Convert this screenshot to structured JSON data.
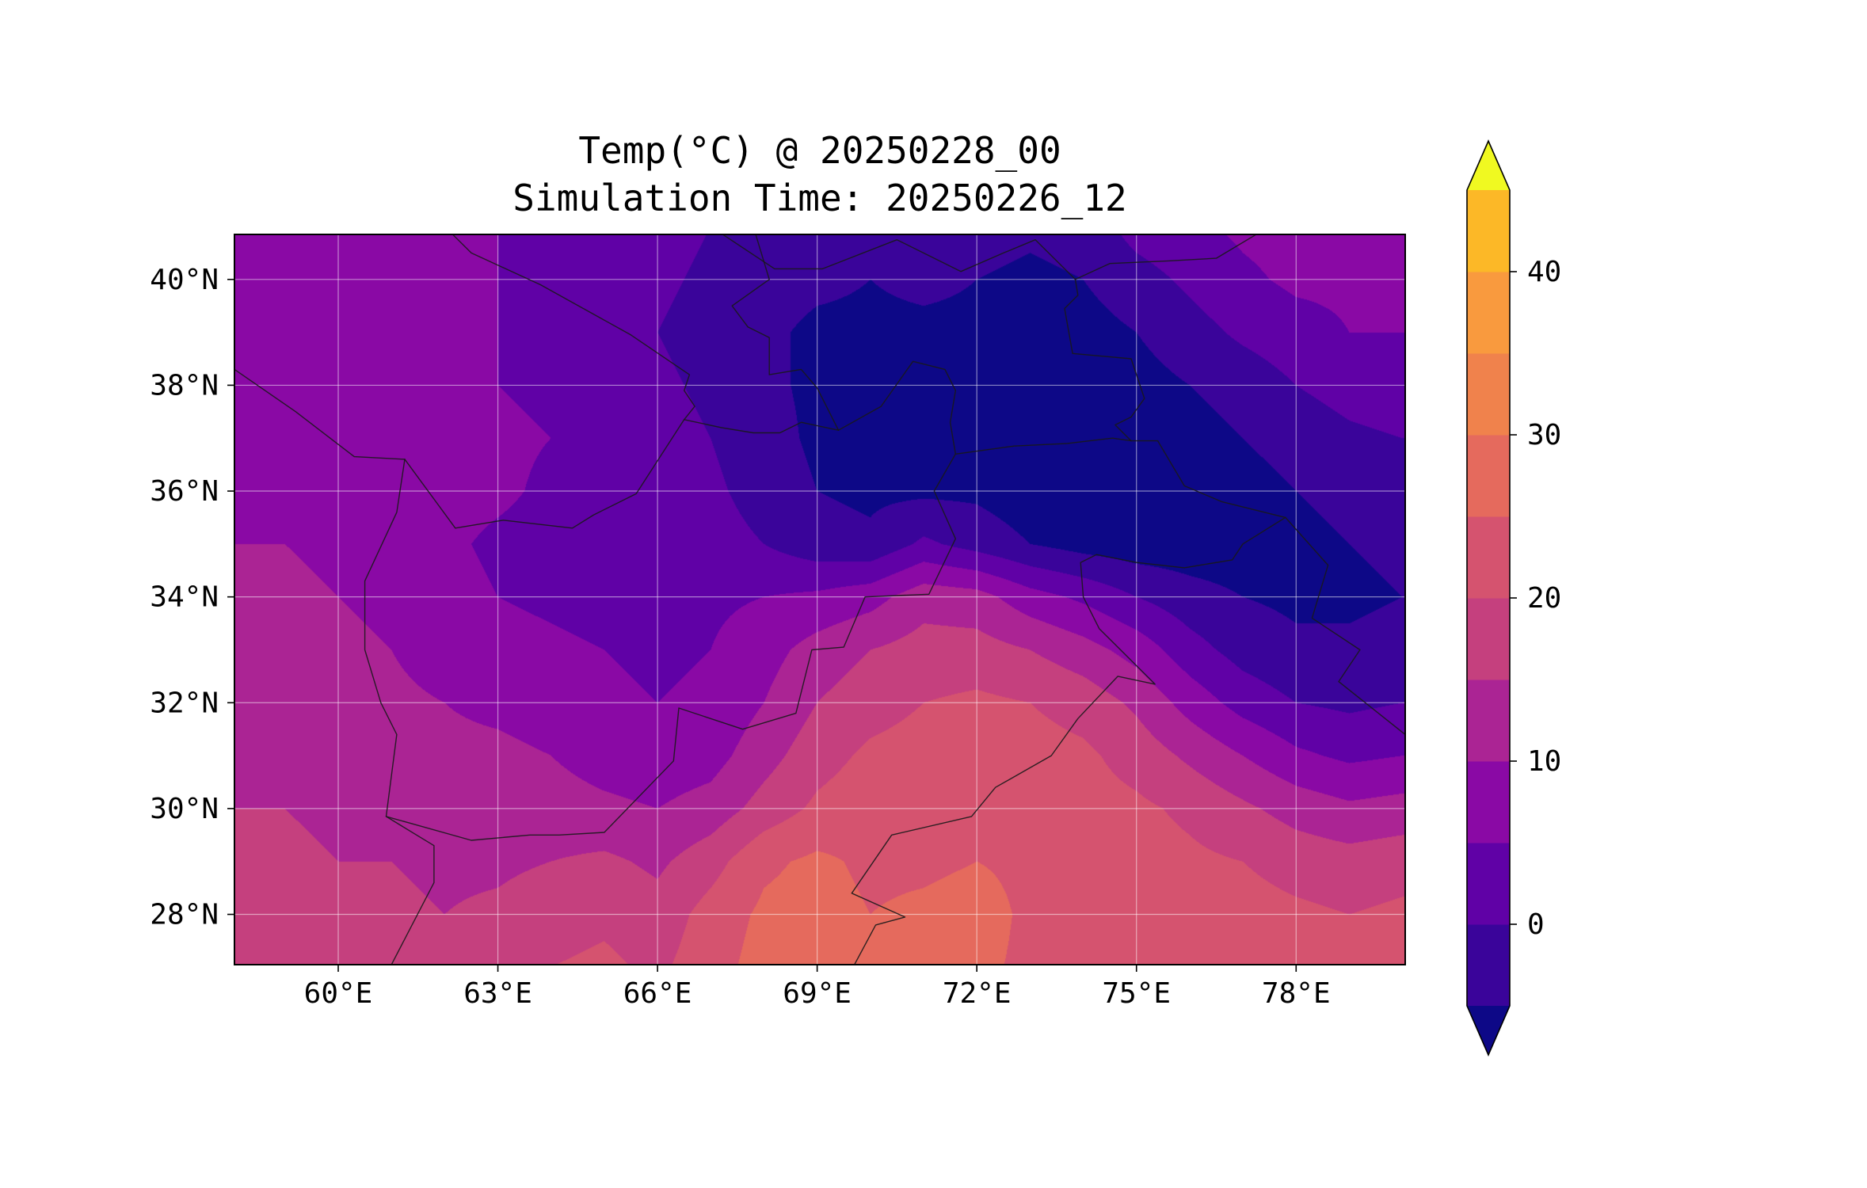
{
  "title": {
    "line1": "Temp(°C) @ 20250228_00",
    "line2": "Simulation Time: 20250226_12"
  },
  "chart_data": {
    "type": "heatmap",
    "title": "Temp(°C) @ 20250228_00",
    "subtitle": "Simulation Time: 20250226_12",
    "variable": "Temp",
    "units": "°C",
    "projection": "lon-lat",
    "lon_range": [
      58.05,
      80.05
    ],
    "lat_range": [
      27.05,
      40.85
    ],
    "x_ticks": [
      {
        "value": 60,
        "label": "60°E"
      },
      {
        "value": 63,
        "label": "63°E"
      },
      {
        "value": 66,
        "label": "66°E"
      },
      {
        "value": 69,
        "label": "69°E"
      },
      {
        "value": 72,
        "label": "72°E"
      },
      {
        "value": 75,
        "label": "75°E"
      },
      {
        "value": 78,
        "label": "78°E"
      }
    ],
    "y_ticks": [
      {
        "value": 28,
        "label": "28°N"
      },
      {
        "value": 30,
        "label": "30°N"
      },
      {
        "value": 32,
        "label": "32°N"
      },
      {
        "value": 34,
        "label": "34°N"
      },
      {
        "value": 36,
        "label": "36°N"
      },
      {
        "value": 38,
        "label": "38°N"
      },
      {
        "value": 40,
        "label": "40°N"
      }
    ],
    "levels": [
      -5,
      0,
      5,
      10,
      15,
      20,
      25,
      30,
      35,
      40,
      45
    ],
    "band_colors": [
      "#3a049a",
      "#6001a6",
      "#8a09a5",
      "#ab2494",
      "#c5407e",
      "#d5536f",
      "#e56a5d",
      "#f0824c",
      "#f99a3e",
      "#fcb827"
    ],
    "under_color": "#0d0887",
    "over_color": "#f0f921",
    "colorbar_ticks": [
      {
        "value": 0,
        "label": "0"
      },
      {
        "value": 10,
        "label": "10"
      },
      {
        "value": 20,
        "label": "20"
      },
      {
        "value": 30,
        "label": "30"
      },
      {
        "value": 40,
        "label": "40"
      }
    ],
    "grid": {
      "lons": [
        58,
        59,
        60,
        61,
        62,
        63,
        64,
        65,
        66,
        67,
        68,
        69,
        70,
        71,
        72,
        73,
        74,
        75,
        76,
        77,
        78,
        79,
        80
      ],
      "lats": [
        41,
        40,
        39,
        38,
        37,
        36,
        35,
        34,
        33,
        32,
        31,
        30,
        29,
        28,
        27
      ],
      "values": [
        [
          7,
          7,
          6,
          6,
          6,
          5,
          4,
          3,
          2,
          0,
          -2,
          -3,
          -4,
          -2,
          -3,
          -4,
          -3,
          2,
          4,
          6,
          7,
          7,
          7
        ],
        [
          7,
          7,
          6,
          6,
          6,
          5,
          4,
          3,
          1,
          -1,
          -3,
          -4,
          -5,
          -4,
          -5,
          -6,
          -5,
          -2,
          1,
          4,
          6,
          6,
          6
        ],
        [
          7,
          7,
          7,
          6,
          6,
          5,
          3,
          2,
          0,
          -2,
          -4,
          -6,
          -6,
          -6,
          -6,
          -7,
          -7,
          -5,
          -2,
          1,
          3,
          5,
          5
        ],
        [
          8,
          8,
          7,
          7,
          6,
          5,
          4,
          2,
          1,
          -1,
          -4,
          -6,
          -7,
          -6,
          -7,
          -8,
          -8,
          -7,
          -5,
          -3,
          0,
          2,
          3
        ],
        [
          8,
          8,
          8,
          7,
          7,
          6,
          5,
          3,
          2,
          0,
          -3,
          -6,
          -7,
          -7,
          -7,
          -8,
          -9,
          -8,
          -7,
          -5,
          -3,
          -1,
          0
        ],
        [
          9,
          9,
          8,
          8,
          7,
          6,
          4,
          3,
          2,
          1,
          -2,
          -5,
          -6,
          -6,
          -6,
          -8,
          -9,
          -9,
          -8,
          -7,
          -5,
          -3,
          -2
        ],
        [
          10,
          10,
          9,
          8,
          6,
          4,
          3,
          2,
          2,
          2,
          0,
          -3,
          -4,
          1,
          -2,
          -5,
          -7,
          -8,
          -8,
          -8,
          -7,
          -5,
          -4
        ],
        [
          11,
          11,
          10,
          9,
          7,
          5,
          4,
          3,
          3,
          4,
          5,
          6,
          8,
          13,
          12,
          7,
          4,
          0,
          -3,
          -5,
          -6,
          -6,
          -5
        ],
        [
          12,
          12,
          11,
          10,
          8,
          7,
          6,
          5,
          4,
          5,
          8,
          12,
          15,
          17,
          17,
          15,
          12,
          8,
          2,
          -2,
          -4,
          -4,
          -3
        ],
        [
          13,
          13,
          12,
          11,
          10,
          9,
          8,
          6,
          5,
          6,
          10,
          15,
          18,
          20,
          21,
          20,
          18,
          14,
          8,
          3,
          0,
          -1,
          0
        ],
        [
          14,
          14,
          13,
          12,
          11,
          11,
          10,
          8,
          7,
          8,
          13,
          18,
          21,
          22,
          23,
          22,
          21,
          18,
          14,
          10,
          6,
          4,
          5
        ],
        [
          15,
          15,
          14,
          13,
          13,
          12,
          12,
          11,
          10,
          12,
          17,
          21,
          23,
          23,
          24,
          23,
          22,
          21,
          19,
          16,
          13,
          11,
          12
        ],
        [
          16,
          16,
          15,
          15,
          14,
          14,
          15,
          16,
          14,
          18,
          24,
          26,
          24,
          24,
          25,
          24,
          23,
          22,
          21,
          20,
          18,
          17,
          18
        ],
        [
          19,
          18,
          17,
          16,
          15,
          16,
          18,
          19,
          17,
          22,
          26,
          27,
          25,
          26,
          27,
          24,
          23,
          23,
          22,
          22,
          21,
          20,
          21
        ],
        [
          20,
          19,
          18,
          17,
          16,
          17,
          20,
          21,
          19,
          23,
          27,
          28,
          26,
          27,
          26,
          24,
          24,
          23,
          23,
          23,
          22,
          21,
          22
        ]
      ]
    },
    "borders": [
      [
        [
          61.0,
          27.05
        ],
        [
          61.8,
          28.6
        ],
        [
          61.8,
          29.3
        ],
        [
          60.9,
          29.85
        ],
        [
          61.1,
          31.4
        ],
        [
          60.8,
          32.0
        ],
        [
          60.5,
          33.0
        ],
        [
          60.5,
          34.3
        ],
        [
          61.1,
          35.6
        ],
        [
          61.25,
          36.6
        ]
      ],
      [
        [
          58.05,
          38.3
        ],
        [
          59.2,
          37.5
        ],
        [
          60.3,
          36.65
        ],
        [
          61.25,
          36.6
        ]
      ],
      [
        [
          61.25,
          36.6
        ],
        [
          62.2,
          35.3
        ],
        [
          63.1,
          35.45
        ],
        [
          64.4,
          35.3
        ],
        [
          64.8,
          35.55
        ],
        [
          65.6,
          35.95
        ],
        [
          66.5,
          37.35
        ]
      ],
      [
        [
          66.5,
          37.35
        ],
        [
          67.2,
          37.2
        ],
        [
          67.8,
          37.1
        ],
        [
          68.3,
          37.1
        ],
        [
          68.7,
          37.3
        ],
        [
          69.4,
          37.15
        ],
        [
          70.2,
          37.6
        ],
        [
          70.8,
          38.45
        ],
        [
          71.4,
          38.3
        ],
        [
          71.6,
          37.9
        ],
        [
          71.5,
          37.3
        ],
        [
          71.6,
          36.7
        ],
        [
          72.7,
          36.85
        ],
        [
          73.7,
          36.9
        ],
        [
          74.55,
          37.0
        ],
        [
          74.9,
          36.95
        ]
      ],
      [
        [
          60.9,
          29.85
        ],
        [
          62.5,
          29.4
        ],
        [
          63.6,
          29.5
        ],
        [
          64.15,
          29.5
        ],
        [
          65.0,
          29.55
        ],
        [
          66.3,
          30.9
        ],
        [
          66.4,
          31.9
        ],
        [
          67.6,
          31.5
        ],
        [
          68.6,
          31.8
        ],
        [
          68.9,
          33.0
        ],
        [
          69.5,
          33.05
        ],
        [
          69.9,
          34.0
        ],
        [
          71.1,
          34.05
        ],
        [
          71.6,
          35.1
        ],
        [
          71.2,
          36.0
        ],
        [
          71.6,
          36.7
        ]
      ],
      [
        [
          69.7,
          27.05
        ],
        [
          70.1,
          27.8
        ],
        [
          70.65,
          27.95
        ],
        [
          69.65,
          28.4
        ],
        [
          70.4,
          29.5
        ],
        [
          71.9,
          29.85
        ],
        [
          72.35,
          30.4
        ],
        [
          73.4,
          31.0
        ],
        [
          73.9,
          31.7
        ],
        [
          74.65,
          32.5
        ],
        [
          75.35,
          32.35
        ],
        [
          74.3,
          33.4
        ],
        [
          74.0,
          34.0
        ],
        [
          73.95,
          34.65
        ],
        [
          74.25,
          34.8
        ],
        [
          75.0,
          34.65
        ],
        [
          75.9,
          34.55
        ],
        [
          76.8,
          34.7
        ],
        [
          77.0,
          35.0
        ],
        [
          77.8,
          35.5
        ]
      ],
      [
        [
          74.9,
          36.95
        ],
        [
          75.4,
          36.95
        ],
        [
          75.9,
          36.1
        ],
        [
          76.6,
          35.8
        ],
        [
          77.8,
          35.5
        ]
      ],
      [
        [
          74.9,
          36.95
        ],
        [
          74.6,
          37.25
        ],
        [
          74.9,
          37.4
        ],
        [
          75.15,
          37.75
        ],
        [
          74.9,
          38.5
        ],
        [
          73.8,
          38.6
        ],
        [
          73.65,
          39.45
        ],
        [
          73.9,
          39.7
        ],
        [
          73.85,
          40.0
        ],
        [
          74.5,
          40.3
        ],
        [
          75.6,
          40.35
        ],
        [
          76.5,
          40.4
        ],
        [
          77.5,
          41.0
        ]
      ],
      [
        [
          67.0,
          41.0
        ],
        [
          68.2,
          40.2
        ],
        [
          69.1,
          40.2
        ],
        [
          70.5,
          40.75
        ],
        [
          71.7,
          40.15
        ],
        [
          72.5,
          40.5
        ],
        [
          73.1,
          40.75
        ],
        [
          73.85,
          40.0
        ]
      ],
      [
        [
          67.8,
          41.0
        ],
        [
          68.1,
          40.0
        ],
        [
          67.4,
          39.5
        ],
        [
          67.7,
          39.1
        ],
        [
          68.1,
          38.9
        ],
        [
          68.1,
          38.2
        ],
        [
          68.7,
          38.3
        ],
        [
          69.0,
          37.95
        ],
        [
          69.4,
          37.15
        ]
      ],
      [
        [
          77.8,
          35.5
        ],
        [
          78.6,
          34.6
        ],
        [
          78.3,
          33.6
        ],
        [
          79.2,
          33.0
        ],
        [
          78.8,
          32.4
        ],
        [
          79.3,
          32.0
        ],
        [
          80.05,
          31.4
        ]
      ],
      [
        [
          62.0,
          41.0
        ],
        [
          62.5,
          40.5
        ],
        [
          63.8,
          39.9
        ],
        [
          65.5,
          38.95
        ],
        [
          66.6,
          38.2
        ],
        [
          66.5,
          37.9
        ],
        [
          66.7,
          37.6
        ],
        [
          66.5,
          37.35
        ]
      ]
    ]
  },
  "colors": {
    "background": "#ffffff",
    "frame": "#000000",
    "gridline": "rgba(255,255,255,0.5)",
    "border_line": "#1a1a1a",
    "text": "#000000"
  }
}
